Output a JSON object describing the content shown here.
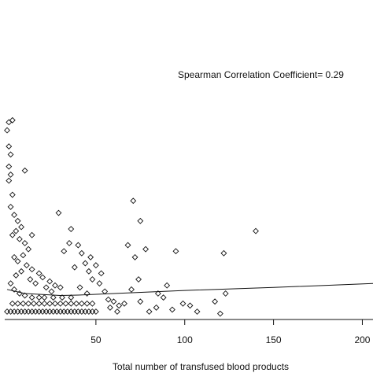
{
  "chart_data": {
    "type": "scatter",
    "title": "",
    "annotation": "Spearman Correlation Coefficient= 0.29",
    "xlabel": "Total number of transfused blood products",
    "ylabel": "",
    "xlim": [
      -4,
      206
    ],
    "ylim": [
      0,
      1
    ],
    "x_ticks": [
      50,
      100,
      150,
      200
    ],
    "x_tick_labels": [
      "50",
      "100",
      "150",
      "200"
    ],
    "grid": false,
    "marker": "diamond-open",
    "points": [
      [
        1,
        0.94
      ],
      [
        3,
        0.95
      ],
      [
        0,
        0.9
      ],
      [
        1,
        0.82
      ],
      [
        2,
        0.78
      ],
      [
        1,
        0.72
      ],
      [
        2,
        0.68
      ],
      [
        1,
        0.65
      ],
      [
        3,
        0.58
      ],
      [
        10,
        0.7
      ],
      [
        14,
        0.38
      ],
      [
        36,
        0.41
      ],
      [
        35,
        0.34
      ],
      [
        29,
        0.49
      ],
      [
        71,
        0.55
      ],
      [
        75,
        0.45
      ],
      [
        140,
        0.4
      ],
      [
        2,
        0.52
      ],
      [
        4,
        0.48
      ],
      [
        6,
        0.45
      ],
      [
        8,
        0.42
      ],
      [
        5,
        0.4
      ],
      [
        3,
        0.38
      ],
      [
        7,
        0.36
      ],
      [
        10,
        0.34
      ],
      [
        12,
        0.31
      ],
      [
        9,
        0.28
      ],
      [
        4,
        0.27
      ],
      [
        6,
        0.25
      ],
      [
        11,
        0.23
      ],
      [
        14,
        0.21
      ],
      [
        18,
        0.19
      ],
      [
        20,
        0.17
      ],
      [
        24,
        0.15
      ],
      [
        27,
        0.13
      ],
      [
        30,
        0.12
      ],
      [
        8,
        0.2
      ],
      [
        5,
        0.18
      ],
      [
        13,
        0.16
      ],
      [
        16,
        0.14
      ],
      [
        22,
        0.12
      ],
      [
        25,
        0.1
      ],
      [
        2,
        0.14
      ],
      [
        4,
        0.11
      ],
      [
        7,
        0.09
      ],
      [
        10,
        0.08
      ],
      [
        14,
        0.07
      ],
      [
        18,
        0.07
      ],
      [
        21,
        0.07
      ],
      [
        26,
        0.07
      ],
      [
        31,
        0.07
      ],
      [
        36,
        0.07
      ],
      [
        3,
        0.04
      ],
      [
        6,
        0.04
      ],
      [
        9,
        0.04
      ],
      [
        12,
        0.04
      ],
      [
        15,
        0.04
      ],
      [
        18,
        0.04
      ],
      [
        21,
        0.04
      ],
      [
        24,
        0.04
      ],
      [
        27,
        0.04
      ],
      [
        30,
        0.04
      ],
      [
        33,
        0.04
      ],
      [
        36,
        0.04
      ],
      [
        39,
        0.04
      ],
      [
        42,
        0.04
      ],
      [
        45,
        0.04
      ],
      [
        48,
        0.04
      ],
      [
        0,
        0.0
      ],
      [
        2,
        0.0
      ],
      [
        4,
        0.0
      ],
      [
        6,
        0.0
      ],
      [
        8,
        0.0
      ],
      [
        10,
        0.0
      ],
      [
        12,
        0.0
      ],
      [
        14,
        0.0
      ],
      [
        16,
        0.0
      ],
      [
        18,
        0.0
      ],
      [
        20,
        0.0
      ],
      [
        22,
        0.0
      ],
      [
        24,
        0.0
      ],
      [
        26,
        0.0
      ],
      [
        28,
        0.0
      ],
      [
        30,
        0.0
      ],
      [
        32,
        0.0
      ],
      [
        34,
        0.0
      ],
      [
        36,
        0.0
      ],
      [
        38,
        0.0
      ],
      [
        40,
        0.0
      ],
      [
        42,
        0.0
      ],
      [
        44,
        0.0
      ],
      [
        46,
        0.0
      ],
      [
        48,
        0.0
      ],
      [
        50,
        0.0
      ],
      [
        32,
        0.3
      ],
      [
        40,
        0.33
      ],
      [
        44,
        0.24
      ],
      [
        46,
        0.2
      ],
      [
        48,
        0.16
      ],
      [
        52,
        0.14
      ],
      [
        55,
        0.1
      ],
      [
        57,
        0.06
      ],
      [
        60,
        0.05
      ],
      [
        63,
        0.03
      ],
      [
        42,
        0.29
      ],
      [
        47,
        0.27
      ],
      [
        38,
        0.22
      ],
      [
        50,
        0.23
      ],
      [
        53,
        0.19
      ],
      [
        68,
        0.33
      ],
      [
        72,
        0.27
      ],
      [
        78,
        0.31
      ],
      [
        95,
        0.3
      ],
      [
        122,
        0.29
      ],
      [
        74,
        0.16
      ],
      [
        70,
        0.11
      ],
      [
        85,
        0.09
      ],
      [
        88,
        0.07
      ],
      [
        75,
        0.05
      ],
      [
        80,
        0.0
      ],
      [
        90,
        0.13
      ],
      [
        93,
        0.01
      ],
      [
        99,
        0.04
      ],
      [
        103,
        0.03
      ],
      [
        107,
        0.0
      ],
      [
        117,
        0.05
      ],
      [
        120,
        -0.01
      ],
      [
        123,
        0.09
      ],
      [
        66,
        0.04
      ],
      [
        58,
        0.02
      ],
      [
        62,
        0.0
      ],
      [
        84,
        0.02
      ],
      [
        45,
        0.09
      ],
      [
        41,
        0.12
      ]
    ],
    "fit_line": [
      [
        0,
        0.11
      ],
      [
        10,
        0.09
      ],
      [
        20,
        0.085
      ],
      [
        30,
        0.08
      ],
      [
        40,
        0.082
      ],
      [
        60,
        0.09
      ],
      [
        100,
        0.105
      ],
      [
        150,
        0.12
      ],
      [
        206,
        0.14
      ]
    ]
  }
}
